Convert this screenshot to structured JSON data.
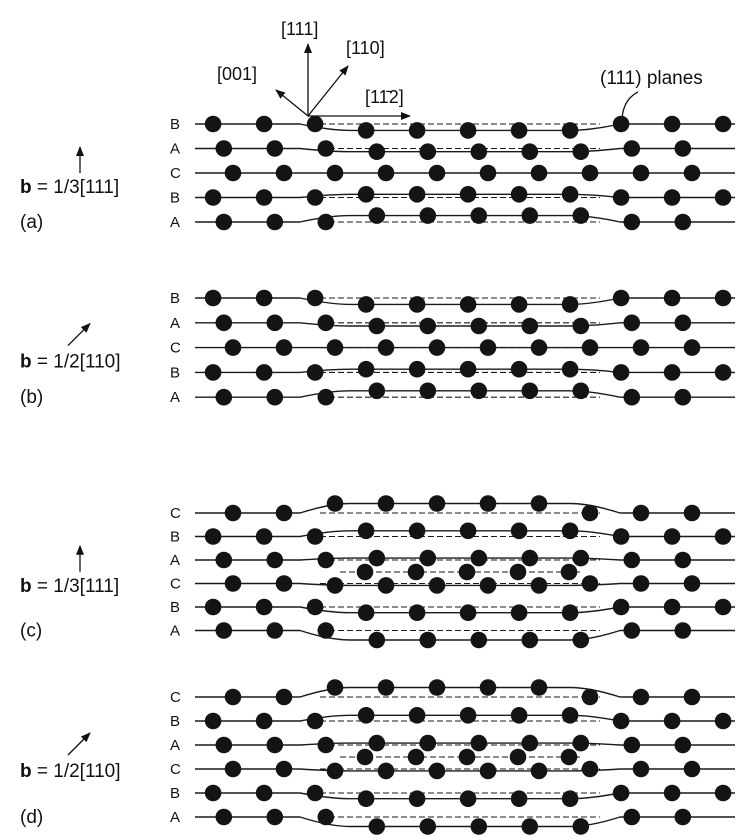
{
  "directions": [
    "[111]",
    "[110]",
    "[001]",
    "[11̄",
    "2]"
  ],
  "planes_label": "(111) planes",
  "panels": [
    {
      "id": "a",
      "letter": "(a)",
      "burgers_prefix": "b",
      "burgers_rest": " = 1/3[111]",
      "burgers_dir": "vertical",
      "layers": [
        "B",
        "A",
        "C",
        "B",
        "A"
      ]
    },
    {
      "id": "b",
      "letter": "(b)",
      "burgers_prefix": "b",
      "burgers_rest": " = 1/2[110]",
      "burgers_dir": "diagonal",
      "layers": [
        "B",
        "A",
        "C",
        "B",
        "A"
      ]
    },
    {
      "id": "c",
      "letter": "(c)",
      "burgers_prefix": "b",
      "burgers_rest": " = 1/3[111]",
      "burgers_dir": "vertical",
      "layers": [
        "C",
        "B",
        "A",
        "C",
        "B",
        "A"
      ]
    },
    {
      "id": "d",
      "letter": "(d)",
      "burgers_prefix": "b",
      "burgers_rest": " = 1/2[110]",
      "burgers_dir": "diagonal",
      "layers": [
        "C",
        "B",
        "A",
        "C",
        "B",
        "A"
      ]
    }
  ]
}
